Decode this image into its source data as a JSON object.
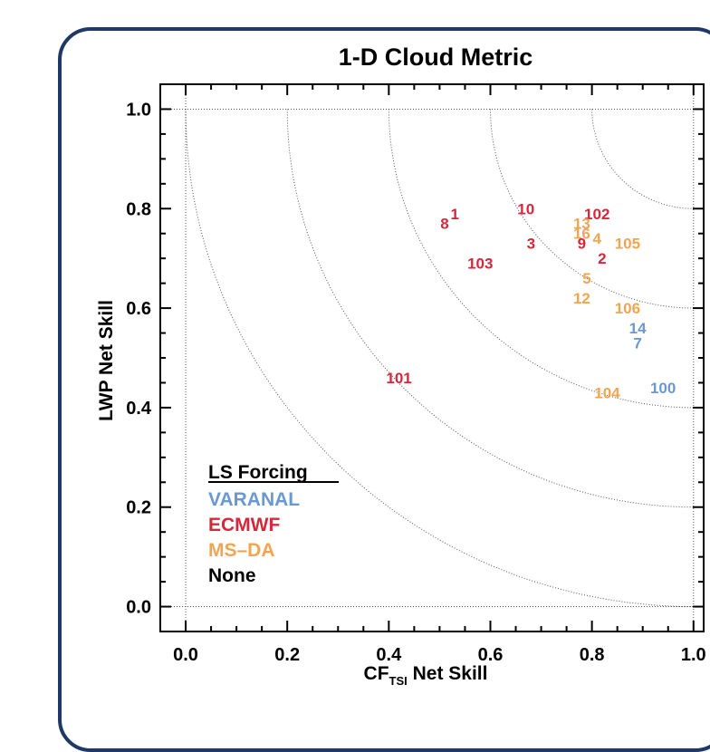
{
  "chart_data": {
    "type": "scatter",
    "title": "1-D Cloud Metric",
    "xlabel_main": "CF",
    "xlabel_sub": "TSI",
    "xlabel_rest": " Net Skill",
    "ylabel": "LWP Net Skill",
    "xlim": [
      -0.05,
      1.02
    ],
    "ylim": [
      -0.05,
      1.05
    ],
    "x_ticks": [
      "0.0",
      "0.2",
      "0.4",
      "0.6",
      "0.8",
      "1.0"
    ],
    "y_ticks": [
      "0.0",
      "0.2",
      "0.4",
      "0.6",
      "0.8",
      "1.0"
    ],
    "reference_arcs": [
      0.2,
      0.4,
      0.6,
      0.8,
      1.0
    ],
    "grid": "dotted",
    "legend": {
      "title": "LS Forcing",
      "position": "bottom-left",
      "entries": [
        {
          "name": "VARANAL",
          "color": "#6a98d0"
        },
        {
          "name": "ECMWF",
          "color": "#d8263a"
        },
        {
          "name": "MS–DA",
          "color": "#f2a551"
        },
        {
          "name": "None",
          "color": "#000000"
        }
      ]
    },
    "points": [
      {
        "label": "1",
        "x": 0.53,
        "y": 0.79,
        "group": "ECMWF"
      },
      {
        "label": "8",
        "x": 0.51,
        "y": 0.77,
        "group": "ECMWF"
      },
      {
        "label": "10",
        "x": 0.67,
        "y": 0.8,
        "group": "ECMWF"
      },
      {
        "label": "102",
        "x": 0.81,
        "y": 0.79,
        "group": "ECMWF"
      },
      {
        "label": "13",
        "x": 0.78,
        "y": 0.77,
        "group": "MS-DA"
      },
      {
        "label": "16",
        "x": 0.78,
        "y": 0.75,
        "group": "MS-DA"
      },
      {
        "label": "4",
        "x": 0.81,
        "y": 0.74,
        "group": "MS-DA"
      },
      {
        "label": "105",
        "x": 0.87,
        "y": 0.73,
        "group": "MS-DA"
      },
      {
        "label": "9",
        "x": 0.78,
        "y": 0.73,
        "group": "ECMWF"
      },
      {
        "label": "3",
        "x": 0.68,
        "y": 0.73,
        "group": "ECMWF"
      },
      {
        "label": "2",
        "x": 0.82,
        "y": 0.7,
        "group": "ECMWF"
      },
      {
        "label": "103",
        "x": 0.58,
        "y": 0.69,
        "group": "ECMWF"
      },
      {
        "label": "5",
        "x": 0.79,
        "y": 0.66,
        "group": "MS-DA"
      },
      {
        "label": "12",
        "x": 0.78,
        "y": 0.62,
        "group": "MS-DA"
      },
      {
        "label": "106",
        "x": 0.87,
        "y": 0.6,
        "group": "MS-DA"
      },
      {
        "label": "14",
        "x": 0.89,
        "y": 0.56,
        "group": "VARANAL"
      },
      {
        "label": "7",
        "x": 0.89,
        "y": 0.53,
        "group": "VARANAL"
      },
      {
        "label": "101",
        "x": 0.42,
        "y": 0.46,
        "group": "ECMWF"
      },
      {
        "label": "104",
        "x": 0.83,
        "y": 0.43,
        "group": "MS-DA"
      },
      {
        "label": "100",
        "x": 0.94,
        "y": 0.44,
        "group": "VARANAL"
      }
    ],
    "group_colors": {
      "VARANAL": "#6a98d0",
      "ECMWF": "#d8263a",
      "MS-DA": "#f2a551",
      "None": "#000000"
    }
  }
}
